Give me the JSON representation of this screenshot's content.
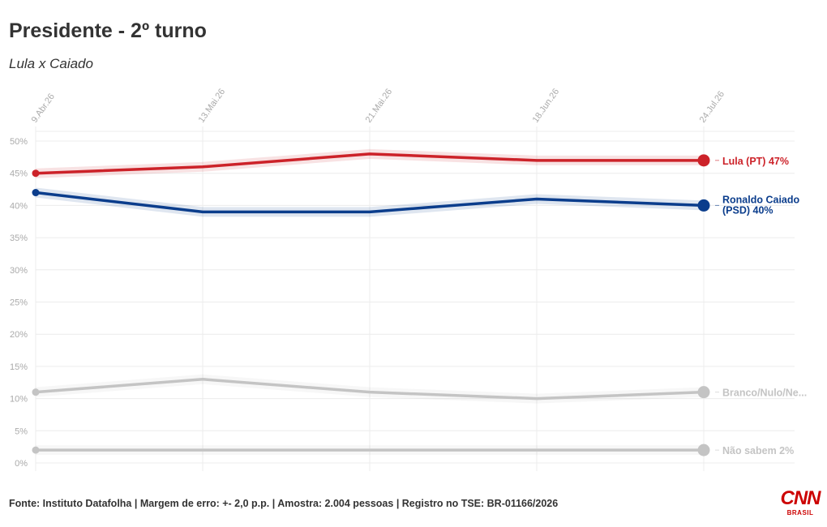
{
  "header": {
    "title": "Presidente - 2º turno",
    "subtitle": "Lula x Caiado"
  },
  "footer": {
    "source": "Fonte: Instituto Datafolha | Margem de erro: +- 2,0 p.p. | Amostra: 2.004 pessoas | Registro no TSE: BR-01166/2026",
    "logo_main": "CNN",
    "logo_sub": "BRASIL"
  },
  "chart_data": {
    "type": "line",
    "x": [
      "9.Abr.26",
      "13.Mai.26",
      "21.Mai.26",
      "18.Jun.26",
      "24.Jul.26"
    ],
    "x_ticks": [
      "9.Abr.26",
      "13.Mai.26",
      "21.Mai.26",
      "18.Jun.26",
      "24.Jul.26"
    ],
    "y_ticks": [
      "0%",
      "5%",
      "10%",
      "15%",
      "20%",
      "25%",
      "30%",
      "35%",
      "40%",
      "45%",
      "50%"
    ],
    "ylim": [
      0,
      50
    ],
    "grid": true,
    "legend": "end-of-line labels",
    "series": [
      {
        "name": "Lula (PT)",
        "label": "Lula (PT) 47%",
        "values": [
          45,
          46,
          48,
          47,
          47
        ],
        "color": "#cc2229"
      },
      {
        "name": "Ronaldo Caiado (PSD)",
        "label_lines": [
          "Ronaldo Caiado",
          "(PSD) 40%"
        ],
        "values": [
          42,
          39,
          39,
          41,
          40
        ],
        "color": "#0b3d8c"
      },
      {
        "name": "Branco/Nulo/Ne...",
        "label": "Branco/Nulo/Ne...",
        "values": [
          11,
          13,
          11,
          10,
          11
        ],
        "color": "#c4c4c4"
      },
      {
        "name": "Não sabem",
        "label": "Não sabem 2%",
        "values": [
          2,
          2,
          2,
          2,
          2
        ],
        "color": "#c4c4c4"
      }
    ]
  }
}
